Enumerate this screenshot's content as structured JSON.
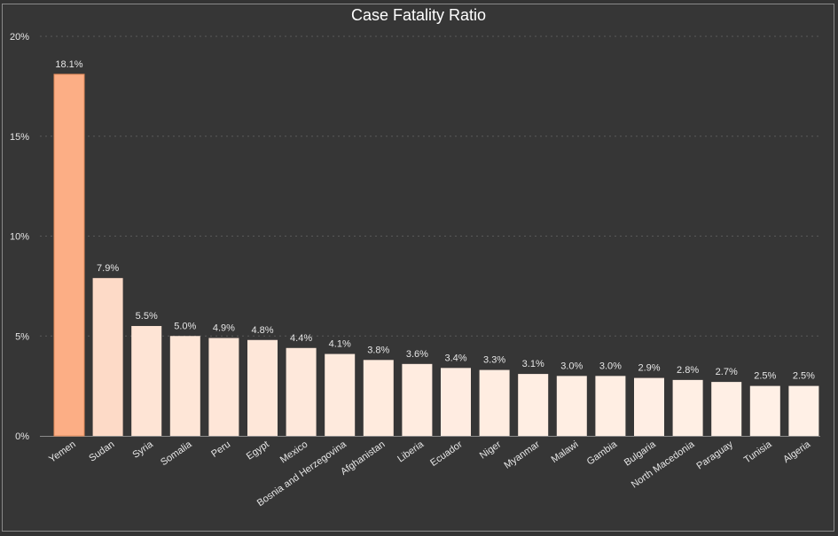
{
  "chart_data": {
    "type": "bar",
    "title": "Case Fatality Ratio",
    "xlabel": "",
    "ylabel": "",
    "ylim": [
      0,
      20
    ],
    "yticks": [
      0,
      5,
      10,
      15,
      20
    ],
    "ytick_labels": [
      "0%",
      "5%",
      "10%",
      "15%",
      "20%"
    ],
    "grid": true,
    "categories": [
      "Yemen",
      "Sudan",
      "Syria",
      "Somalia",
      "Peru",
      "Egypt",
      "Mexico",
      "Bosnia and Herzegovina",
      "Afghanistan",
      "Liberia",
      "Ecuador",
      "Niger",
      "Myanmar",
      "Malawi",
      "Gambia",
      "Bulgaria",
      "North Macedonia",
      "Paraguay",
      "Tunisia",
      "Algeria"
    ],
    "values": [
      18.1,
      7.9,
      5.5,
      5.0,
      4.9,
      4.8,
      4.4,
      4.1,
      3.8,
      3.6,
      3.4,
      3.3,
      3.1,
      3.0,
      3.0,
      2.9,
      2.8,
      2.7,
      2.5,
      2.5
    ],
    "value_labels": [
      "18.1%",
      "7.9%",
      "5.5%",
      "5.0%",
      "4.9%",
      "4.8%",
      "4.4%",
      "4.1%",
      "3.8%",
      "3.6%",
      "3.4%",
      "3.3%",
      "3.1%",
      "3.0%",
      "3.0%",
      "2.9%",
      "2.8%",
      "2.7%",
      "2.5%",
      "2.5%"
    ],
    "color_scale": {
      "low": "#fff0e6",
      "mid": "#fddac6",
      "high": "#fcae85"
    }
  }
}
